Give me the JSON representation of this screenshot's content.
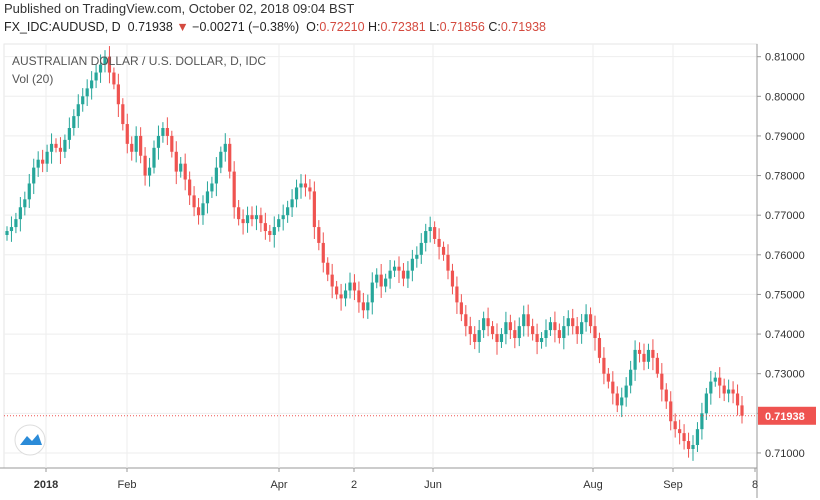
{
  "header": {
    "published": "Published on TradingView.com, October 02, 2018 09:04 BST",
    "symbol": "FX_IDC:AUDUSD, D",
    "last": "0.71938",
    "change": "−0.00271 (−0.38%)",
    "o_label": "O:",
    "o_value": "0.72210",
    "h_label": "H:",
    "h_value": "0.72381",
    "l_label": "L:",
    "l_value": "0.71856",
    "c_label": "C:",
    "c_value": "0.71938"
  },
  "chart_data": {
    "type": "candlestick",
    "title": "AUSTRALIAN DOLLAR / U.S. DOLLAR, D, IDC",
    "subtitle": "Vol (20)",
    "ylim": [
      0.7062,
      0.8132
    ],
    "yticks": [
      "0.81000",
      "0.80000",
      "0.79000",
      "0.78000",
      "0.77000",
      "0.76000",
      "0.75000",
      "0.74000",
      "0.73000",
      "0.72000",
      "0.71000"
    ],
    "xtick_labels": [
      {
        "label": "2018",
        "bold": true
      },
      {
        "label": "Feb",
        "bold": false
      },
      {
        "label": "Apr",
        "bold": false
      },
      {
        "label": "2",
        "bold": false
      },
      {
        "label": "Jun",
        "bold": false
      },
      {
        "label": "Aug",
        "bold": false
      },
      {
        "label": "Sep",
        "bold": false
      },
      {
        "label": "8",
        "bold": false
      }
    ],
    "last_price_label": "0.71938",
    "last_price": 0.71938,
    "up_color": "#26a69a",
    "down_color": "#ef5350",
    "closes": [
      0.766,
      0.767,
      0.769,
      0.772,
      0.774,
      0.778,
      0.782,
      0.784,
      0.783,
      0.786,
      0.788,
      0.787,
      0.786,
      0.789,
      0.792,
      0.795,
      0.798,
      0.8,
      0.802,
      0.804,
      0.806,
      0.808,
      0.81,
      0.806,
      0.803,
      0.798,
      0.793,
      0.788,
      0.786,
      0.79,
      0.785,
      0.78,
      0.782,
      0.787,
      0.79,
      0.792,
      0.79,
      0.786,
      0.781,
      0.783,
      0.779,
      0.775,
      0.772,
      0.77,
      0.773,
      0.776,
      0.778,
      0.782,
      0.786,
      0.788,
      0.781,
      0.772,
      0.769,
      0.768,
      0.77,
      0.769,
      0.77,
      0.768,
      0.766,
      0.765,
      0.767,
      0.769,
      0.77,
      0.772,
      0.774,
      0.777,
      0.778,
      0.777,
      0.776,
      0.767,
      0.763,
      0.758,
      0.755,
      0.752,
      0.75,
      0.749,
      0.751,
      0.753,
      0.751,
      0.748,
      0.746,
      0.748,
      0.753,
      0.755,
      0.752,
      0.754,
      0.756,
      0.757,
      0.756,
      0.754,
      0.756,
      0.759,
      0.76,
      0.763,
      0.766,
      0.767,
      0.764,
      0.762,
      0.76,
      0.756,
      0.752,
      0.748,
      0.745,
      0.742,
      0.74,
      0.738,
      0.741,
      0.744,
      0.742,
      0.74,
      0.738,
      0.74,
      0.743,
      0.741,
      0.739,
      0.742,
      0.745,
      0.742,
      0.74,
      0.738,
      0.739,
      0.741,
      0.743,
      0.741,
      0.739,
      0.742,
      0.744,
      0.742,
      0.74,
      0.743,
      0.745,
      0.742,
      0.739,
      0.734,
      0.73,
      0.728,
      0.725,
      0.722,
      0.724,
      0.727,
      0.731,
      0.736,
      0.735,
      0.733,
      0.736,
      0.734,
      0.73,
      0.726,
      0.723,
      0.718,
      0.716,
      0.715,
      0.713,
      0.711,
      0.712,
      0.716,
      0.72,
      0.725,
      0.728,
      0.729,
      0.727,
      0.725,
      0.726,
      0.725,
      0.722,
      0.7194
    ],
    "open_first": 0.765
  }
}
